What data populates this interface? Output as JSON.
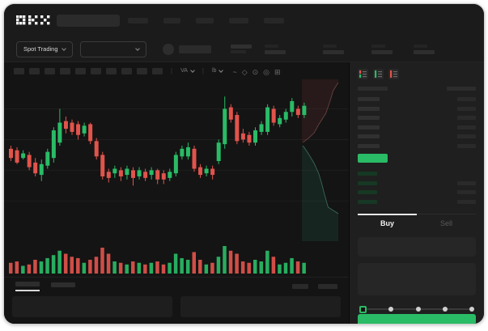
{
  "app": {
    "brand": "OKX",
    "accent_green": "#2abb66",
    "accent_red": "#e0544c"
  },
  "header": {
    "nav_placeholder_count": 5,
    "nav_placeholder_widths": [
      25,
      21,
      22,
      24,
      25
    ]
  },
  "subheader": {
    "market_selector_label": "Spot Trading",
    "stat_group_count": 4,
    "stat_group_gaps": [
      0,
      46,
      34,
      26
    ]
  },
  "toolbar": {
    "tool_button_count": 10,
    "dropdowns": [
      {
        "label": "VA"
      },
      {
        "label": "lb"
      }
    ],
    "icons": [
      {
        "name": "wave-icon",
        "glyph": "~"
      },
      {
        "name": "brush-icon",
        "glyph": "◇"
      },
      {
        "name": "camera-icon",
        "glyph": "⊙"
      },
      {
        "name": "clock-icon",
        "glyph": "◎"
      },
      {
        "name": "fullscreen-icon",
        "glyph": "⊞"
      }
    ]
  },
  "orderbook": {
    "view_toggles": [
      "book-combined-icon",
      "book-bids-icon",
      "book-asks-icon"
    ],
    "ask_row_count": 6,
    "bid_row_count": 4,
    "bid_rows_with_amount": [
      1,
      2,
      3
    ],
    "last_price_color": "#2abb66"
  },
  "trade_form": {
    "tabs": [
      {
        "label": "Buy",
        "active": true
      },
      {
        "label": "Sell",
        "active": false
      }
    ],
    "slider_stop_count": 5,
    "slider_active_index": 0,
    "submit_color": "#2abb66"
  },
  "bottom_bar": {
    "tab_count": 2,
    "active_tab_index": 0,
    "right_placeholder_widths": [
      20,
      24
    ],
    "panel_count": 2
  },
  "chart_data": [
    {
      "type": "candlestick",
      "title": "",
      "xlabel": "",
      "ylabel": "",
      "axis_labels_visible": false,
      "scale_note": "no numeric axes rendered in screenshot; OHLC normalized 0-100 of visible price range",
      "ylim": [
        0,
        100
      ],
      "gridline_levels": [
        84,
        64,
        44,
        24
      ],
      "up_color": "#2abb66",
      "down_color": "#e0544c",
      "ohlc": [
        [
          58,
          60,
          50,
          52
        ],
        [
          57,
          59,
          48,
          49
        ],
        [
          52,
          57,
          51,
          55
        ],
        [
          54,
          56,
          44,
          46
        ],
        [
          49,
          52,
          40,
          42
        ],
        [
          41,
          51,
          37,
          48
        ],
        [
          47,
          58,
          45,
          56
        ],
        [
          52,
          72,
          49,
          70
        ],
        [
          62,
          84,
          60,
          75
        ],
        [
          76,
          79,
          68,
          71
        ],
        [
          75,
          77,
          67,
          69
        ],
        [
          74,
          76,
          64,
          67
        ],
        [
          68,
          75,
          66,
          73
        ],
        [
          74,
          75,
          61,
          63
        ],
        [
          63,
          65,
          51,
          53
        ],
        [
          54,
          56,
          38,
          40
        ],
        [
          43,
          45,
          36,
          39
        ],
        [
          42,
          47,
          39,
          45
        ],
        [
          44,
          46,
          37,
          40
        ],
        [
          41,
          47,
          38,
          45
        ],
        [
          44,
          46,
          34,
          39
        ],
        [
          40,
          46,
          38,
          44
        ],
        [
          43,
          45,
          37,
          39
        ],
        [
          41,
          46,
          38,
          44
        ],
        [
          44,
          45,
          35,
          38
        ],
        [
          42,
          44,
          35,
          38
        ],
        [
          39,
          45,
          37,
          43
        ],
        [
          42,
          56,
          40,
          54
        ],
        [
          53,
          60,
          51,
          58
        ],
        [
          53,
          62,
          51,
          59
        ],
        [
          58,
          60,
          43,
          45
        ],
        [
          46,
          48,
          39,
          41
        ],
        [
          42,
          47,
          40,
          45
        ],
        [
          45,
          47,
          38,
          41
        ],
        [
          50,
          64,
          48,
          62
        ],
        [
          61,
          92,
          58,
          84
        ],
        [
          85,
          87,
          75,
          77
        ],
        [
          80,
          82,
          61,
          63
        ],
        [
          68,
          71,
          62,
          64
        ],
        [
          67,
          69,
          60,
          62
        ],
        [
          62,
          72,
          60,
          70
        ],
        [
          69,
          76,
          67,
          74
        ],
        [
          69,
          87,
          67,
          85
        ],
        [
          84,
          86,
          73,
          75
        ],
        [
          74,
          80,
          72,
          78
        ],
        [
          77,
          84,
          75,
          82
        ],
        [
          82,
          91,
          79,
          89
        ],
        [
          84,
          86,
          78,
          80
        ],
        [
          80,
          88,
          78,
          86
        ]
      ],
      "volume": [
        39,
        44,
        28,
        33,
        50,
        44,
        56,
        67,
        83,
        72,
        61,
        56,
        39,
        50,
        61,
        94,
        72,
        44,
        39,
        33,
        44,
        39,
        33,
        39,
        44,
        33,
        39,
        72,
        56,
        50,
        78,
        50,
        33,
        39,
        61,
        100,
        83,
        72,
        44,
        39,
        50,
        44,
        83,
        61,
        33,
        39,
        56,
        44,
        39
      ]
    },
    {
      "type": "area",
      "subtype": "vertical-depth",
      "legend_visible": false,
      "series": [
        {
          "name": "asks",
          "line_color": "#6e4545",
          "fill_color": "rgba(112,52,52,0.22)",
          "points_pct": [
            [
              100,
              2
            ],
            [
              86,
              7
            ],
            [
              78,
              13
            ],
            [
              66,
              21
            ],
            [
              46,
              28
            ],
            [
              34,
              33
            ],
            [
              20,
              36
            ],
            [
              3,
              39
            ]
          ]
        },
        {
          "name": "bids",
          "line_color": "#3f6f63",
          "fill_color": "rgba(30,88,68,0.26)",
          "points_pct": [
            [
              3,
              41
            ],
            [
              18,
              46
            ],
            [
              34,
              52
            ],
            [
              46,
              58
            ],
            [
              54,
              64
            ],
            [
              62,
              71
            ],
            [
              72,
              79
            ],
            [
              100,
              83
            ]
          ]
        }
      ]
    }
  ]
}
